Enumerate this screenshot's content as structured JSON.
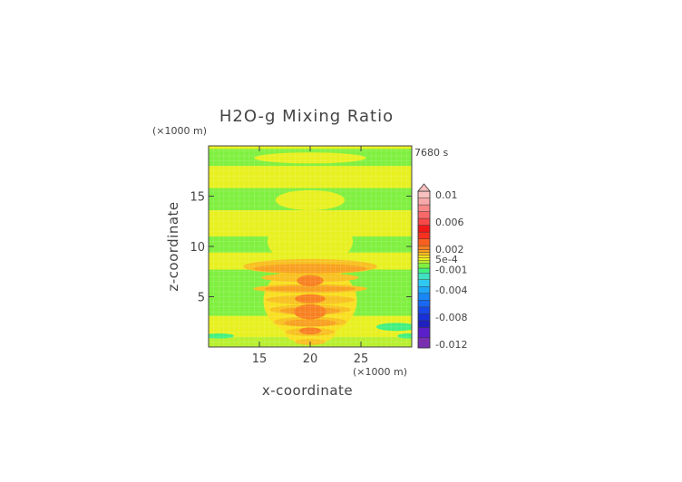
{
  "chart_data": {
    "type": "heatmap",
    "title": "H2O-g Mixing Ratio",
    "time_label": "7680 s",
    "xlabel": "x-coordinate",
    "ylabel": "z-coordinate",
    "x_unit": "(×1000 m)",
    "y_unit": "(×1000 m)",
    "xlim": [
      10,
      30
    ],
    "ylim": [
      0,
      20
    ],
    "x_ticks": [
      15,
      20,
      25
    ],
    "y_ticks": [
      5,
      10,
      15
    ],
    "colorbar": {
      "labels": [
        "0.01",
        "0.006",
        "0.002",
        "5e-4",
        "-0.001",
        "-0.004",
        "-0.008",
        "-0.012"
      ],
      "label_values": [
        0.01,
        0.006,
        0.002,
        0.0005,
        -0.001,
        -0.004,
        -0.008,
        -0.012
      ],
      "min": -0.0125,
      "max": 0.0105,
      "extend_top": true,
      "stops": [
        {
          "from": -0.0125,
          "to": -0.011,
          "color": "#7a2fb0"
        },
        {
          "from": -0.011,
          "to": -0.0095,
          "color": "#5a1fc8"
        },
        {
          "from": -0.0095,
          "to": -0.0085,
          "color": "#2020c0"
        },
        {
          "from": -0.0085,
          "to": -0.0075,
          "color": "#1830d8"
        },
        {
          "from": -0.0075,
          "to": -0.0065,
          "color": "#1848e8"
        },
        {
          "from": -0.0065,
          "to": -0.0055,
          "color": "#1868f0"
        },
        {
          "from": -0.0055,
          "to": -0.0045,
          "color": "#1888f8"
        },
        {
          "from": -0.0045,
          "to": -0.0035,
          "color": "#20a8f8"
        },
        {
          "from": -0.0035,
          "to": -0.0025,
          "color": "#30c8f0"
        },
        {
          "from": -0.0025,
          "to": -0.0015,
          "color": "#40e0c0"
        },
        {
          "from": -0.0015,
          "to": -0.0008,
          "color": "#40f080"
        },
        {
          "from": -0.0008,
          "to": -0.0001,
          "color": "#80f040"
        },
        {
          "from": -0.0001,
          "to": 0.0003,
          "color": "#b8f030"
        },
        {
          "from": 0.0003,
          "to": 0.0007,
          "color": "#e8f020"
        },
        {
          "from": 0.0007,
          "to": 0.0011,
          "color": "#f8e020"
        },
        {
          "from": 0.0011,
          "to": 0.0015,
          "color": "#f8c020"
        },
        {
          "from": 0.0015,
          "to": 0.0019,
          "color": "#f8a020"
        },
        {
          "from": 0.0019,
          "to": 0.0025,
          "color": "#f88020"
        },
        {
          "from": 0.0025,
          "to": 0.0035,
          "color": "#f86020"
        },
        {
          "from": 0.0035,
          "to": 0.0045,
          "color": "#f83020"
        },
        {
          "from": 0.0045,
          "to": 0.0055,
          "color": "#f01818"
        },
        {
          "from": 0.0055,
          "to": 0.0065,
          "color": "#f84848"
        },
        {
          "from": 0.0065,
          "to": 0.0075,
          "color": "#f86868"
        },
        {
          "from": 0.0075,
          "to": 0.0085,
          "color": "#f88888"
        },
        {
          "from": 0.0085,
          "to": 0.0095,
          "color": "#f8a8a8"
        },
        {
          "from": 0.0095,
          "to": 0.0105,
          "color": "#f8c0c0"
        }
      ]
    },
    "background_value": 0.00045,
    "regions": [
      {
        "shape": "band",
        "z": [
          0.0,
          1.0
        ],
        "value": 0.0001
      },
      {
        "shape": "band",
        "z": [
          3.1,
          7.7
        ],
        "value": -0.0003
      },
      {
        "shape": "band",
        "z": [
          9.4,
          11.0
        ],
        "value": -0.0003
      },
      {
        "shape": "band",
        "z": [
          13.6,
          15.8
        ],
        "value": -0.0003
      },
      {
        "shape": "band",
        "z": [
          18.0,
          19.7
        ],
        "value": -0.0003
      },
      {
        "shape": "ellipse",
        "cx": 20.0,
        "cz": 18.8,
        "rx": 5.5,
        "rz": 0.55,
        "value": 0.00045
      },
      {
        "shape": "ellipse",
        "cx": 20.0,
        "cz": 14.6,
        "rx": 3.4,
        "rz": 1.0,
        "value": 0.00045
      },
      {
        "shape": "ellipse",
        "cx": 20.0,
        "cz": 10.5,
        "rx": 4.2,
        "rz": 2.3,
        "value": 0.00045
      },
      {
        "shape": "ellipse",
        "cx": 28.5,
        "cz": 2.0,
        "rx": 2.0,
        "rz": 0.4,
        "value": -0.0012
      },
      {
        "shape": "ellipse",
        "cx": 11.0,
        "cz": 1.1,
        "rx": 1.5,
        "rz": 0.25,
        "value": -0.0014
      },
      {
        "shape": "ellipse",
        "cx": 29.6,
        "cz": 1.1,
        "rx": 1.0,
        "rz": 0.25,
        "value": -0.0014
      },
      {
        "shape": "ellipse",
        "cx": 20.0,
        "cz": 4.6,
        "rx": 4.6,
        "rz": 3.6,
        "value": 0.0009
      },
      {
        "shape": "ellipse",
        "cx": 20.0,
        "cz": 1.6,
        "rx": 2.6,
        "rz": 1.3,
        "value": 0.0009
      },
      {
        "shape": "ellipse",
        "cx": 20.0,
        "cz": 8.0,
        "rx": 6.6,
        "rz": 0.75,
        "value": 0.0013
      },
      {
        "shape": "ellipse",
        "cx": 20.0,
        "cz": 6.9,
        "rx": 4.8,
        "rz": 0.45,
        "value": 0.0013
      },
      {
        "shape": "ellipse",
        "cx": 20.0,
        "cz": 5.8,
        "rx": 5.6,
        "rz": 0.45,
        "value": 0.0013
      },
      {
        "shape": "ellipse",
        "cx": 20.0,
        "cz": 4.7,
        "rx": 4.4,
        "rz": 0.45,
        "value": 0.0013
      },
      {
        "shape": "ellipse",
        "cx": 20.0,
        "cz": 3.7,
        "rx": 4.0,
        "rz": 0.5,
        "value": 0.0013
      },
      {
        "shape": "ellipse",
        "cx": 20.0,
        "cz": 2.5,
        "rx": 3.6,
        "rz": 0.5,
        "value": 0.0013
      },
      {
        "shape": "ellipse",
        "cx": 20.0,
        "cz": 1.5,
        "rx": 2.4,
        "rz": 0.4,
        "value": 0.0013
      },
      {
        "shape": "ellipse",
        "cx": 20.0,
        "cz": 0.5,
        "rx": 1.5,
        "rz": 0.3,
        "value": 0.0013
      },
      {
        "shape": "ellipse",
        "cx": 20.0,
        "cz": 7.8,
        "rx": 5.6,
        "rz": 0.45,
        "value": 0.0017
      },
      {
        "shape": "ellipse",
        "cx": 20.0,
        "cz": 5.8,
        "rx": 4.5,
        "rz": 0.3,
        "value": 0.0017
      },
      {
        "shape": "ellipse",
        "cx": 20.0,
        "cz": 3.6,
        "rx": 3.0,
        "rz": 0.35,
        "value": 0.0017
      },
      {
        "shape": "ellipse",
        "cx": 20.0,
        "cz": 2.4,
        "rx": 2.6,
        "rz": 0.35,
        "value": 0.0017
      },
      {
        "shape": "ellipse",
        "cx": 20.0,
        "cz": 6.6,
        "rx": 1.3,
        "rz": 0.55,
        "value": 0.0023
      },
      {
        "shape": "ellipse",
        "cx": 20.0,
        "cz": 4.8,
        "rx": 1.5,
        "rz": 0.45,
        "value": 0.0023
      },
      {
        "shape": "ellipse",
        "cx": 20.0,
        "cz": 3.5,
        "rx": 1.6,
        "rz": 0.75,
        "value": 0.0023
      },
      {
        "shape": "ellipse",
        "cx": 20.0,
        "cz": 1.6,
        "rx": 1.1,
        "rz": 0.35,
        "value": 0.0023
      }
    ]
  }
}
